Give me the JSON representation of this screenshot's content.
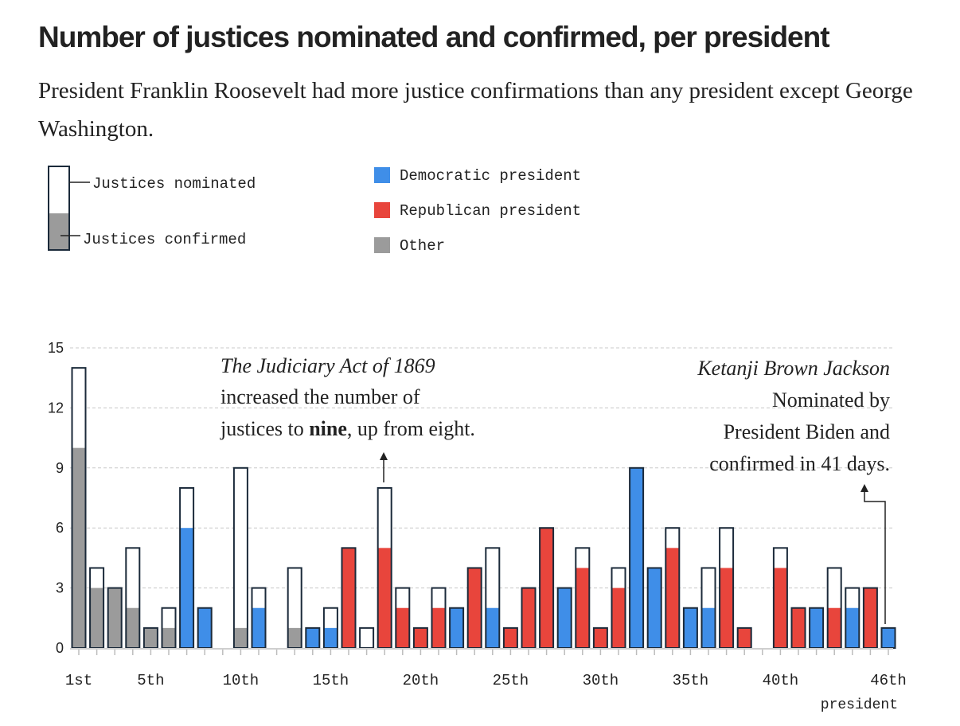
{
  "title": "Number of justices nominated and confirmed, per president",
  "subtitle": "President Franklin Roosevelt had more justice confirmations than any president except George Washington.",
  "legend": {
    "shape": {
      "nominated": "Justices nominated",
      "confirmed": "Justices confirmed"
    },
    "parties": [
      {
        "key": "D",
        "label": "Democratic president",
        "color": "#3f8ee8"
      },
      {
        "key": "R",
        "label": "Republican president",
        "color": "#e8453c"
      },
      {
        "key": "O",
        "label": "Other",
        "color": "#9b9b9b"
      }
    ]
  },
  "annotations": {
    "judiciary": {
      "line1": "The Judiciary Act of 1869",
      "line2": "increased the number of",
      "line3_pre": "justices to ",
      "line3_bold": "nine",
      "line3_post": ", up from eight."
    },
    "kbj": {
      "line1": "Ketanji Brown Jackson",
      "line2": "Nominated by",
      "line3": "President Biden and",
      "line4": "confirmed in 41 days."
    }
  },
  "chart_data": {
    "type": "bar",
    "xlabel": "president",
    "ylim": [
      0,
      15
    ],
    "yticks": [
      0,
      3,
      6,
      9,
      12,
      15
    ],
    "xtick_labels": [
      {
        "president": 1,
        "label": "1st"
      },
      {
        "president": 5,
        "label": "5th"
      },
      {
        "president": 10,
        "label": "10th"
      },
      {
        "president": 15,
        "label": "15th"
      },
      {
        "president": 20,
        "label": "20th"
      },
      {
        "president": 25,
        "label": "25th"
      },
      {
        "president": 30,
        "label": "30th"
      },
      {
        "president": 35,
        "label": "35th"
      },
      {
        "president": 40,
        "label": "40th"
      },
      {
        "president": 46,
        "label": "46th"
      }
    ],
    "grid": true,
    "presidents": [
      {
        "n": 1,
        "nominated": 14,
        "confirmed": 10,
        "party": "O"
      },
      {
        "n": 2,
        "nominated": 4,
        "confirmed": 3,
        "party": "O"
      },
      {
        "n": 3,
        "nominated": 3,
        "confirmed": 3,
        "party": "O"
      },
      {
        "n": 4,
        "nominated": 5,
        "confirmed": 2,
        "party": "O"
      },
      {
        "n": 5,
        "nominated": 1,
        "confirmed": 1,
        "party": "O"
      },
      {
        "n": 6,
        "nominated": 2,
        "confirmed": 1,
        "party": "O"
      },
      {
        "n": 7,
        "nominated": 8,
        "confirmed": 6,
        "party": "D"
      },
      {
        "n": 8,
        "nominated": 2,
        "confirmed": 2,
        "party": "D"
      },
      {
        "n": 9,
        "nominated": 0,
        "confirmed": 0,
        "party": "O"
      },
      {
        "n": 10,
        "nominated": 9,
        "confirmed": 1,
        "party": "O"
      },
      {
        "n": 11,
        "nominated": 3,
        "confirmed": 2,
        "party": "D"
      },
      {
        "n": 12,
        "nominated": 0,
        "confirmed": 0,
        "party": "O"
      },
      {
        "n": 13,
        "nominated": 4,
        "confirmed": 1,
        "party": "O"
      },
      {
        "n": 14,
        "nominated": 1,
        "confirmed": 1,
        "party": "D"
      },
      {
        "n": 15,
        "nominated": 2,
        "confirmed": 1,
        "party": "D"
      },
      {
        "n": 16,
        "nominated": 5,
        "confirmed": 5,
        "party": "R"
      },
      {
        "n": 17,
        "nominated": 1,
        "confirmed": 0,
        "party": "O"
      },
      {
        "n": 18,
        "nominated": 8,
        "confirmed": 5,
        "party": "R"
      },
      {
        "n": 19,
        "nominated": 3,
        "confirmed": 2,
        "party": "R"
      },
      {
        "n": 20,
        "nominated": 1,
        "confirmed": 1,
        "party": "R"
      },
      {
        "n": 21,
        "nominated": 3,
        "confirmed": 2,
        "party": "R"
      },
      {
        "n": 22,
        "nominated": 2,
        "confirmed": 2,
        "party": "D"
      },
      {
        "n": 23,
        "nominated": 4,
        "confirmed": 4,
        "party": "R"
      },
      {
        "n": 24,
        "nominated": 5,
        "confirmed": 2,
        "party": "D"
      },
      {
        "n": 25,
        "nominated": 1,
        "confirmed": 1,
        "party": "R"
      },
      {
        "n": 26,
        "nominated": 3,
        "confirmed": 3,
        "party": "R"
      },
      {
        "n": 27,
        "nominated": 6,
        "confirmed": 6,
        "party": "R"
      },
      {
        "n": 28,
        "nominated": 3,
        "confirmed": 3,
        "party": "D"
      },
      {
        "n": 29,
        "nominated": 5,
        "confirmed": 4,
        "party": "R"
      },
      {
        "n": 30,
        "nominated": 1,
        "confirmed": 1,
        "party": "R"
      },
      {
        "n": 31,
        "nominated": 4,
        "confirmed": 3,
        "party": "R"
      },
      {
        "n": 32,
        "nominated": 9,
        "confirmed": 9,
        "party": "D"
      },
      {
        "n": 33,
        "nominated": 4,
        "confirmed": 4,
        "party": "D"
      },
      {
        "n": 34,
        "nominated": 6,
        "confirmed": 5,
        "party": "R"
      },
      {
        "n": 35,
        "nominated": 2,
        "confirmed": 2,
        "party": "D"
      },
      {
        "n": 36,
        "nominated": 4,
        "confirmed": 2,
        "party": "D"
      },
      {
        "n": 37,
        "nominated": 6,
        "confirmed": 4,
        "party": "R"
      },
      {
        "n": 38,
        "nominated": 1,
        "confirmed": 1,
        "party": "R"
      },
      {
        "n": 39,
        "nominated": 0,
        "confirmed": 0,
        "party": "D"
      },
      {
        "n": 40,
        "nominated": 5,
        "confirmed": 4,
        "party": "R"
      },
      {
        "n": 41,
        "nominated": 2,
        "confirmed": 2,
        "party": "R"
      },
      {
        "n": 42,
        "nominated": 2,
        "confirmed": 2,
        "party": "D"
      },
      {
        "n": 43,
        "nominated": 4,
        "confirmed": 2,
        "party": "R"
      },
      {
        "n": 44,
        "nominated": 3,
        "confirmed": 2,
        "party": "D"
      },
      {
        "n": 45,
        "nominated": 3,
        "confirmed": 3,
        "party": "R"
      },
      {
        "n": 46,
        "nominated": 1,
        "confirmed": 1,
        "party": "D"
      }
    ]
  }
}
